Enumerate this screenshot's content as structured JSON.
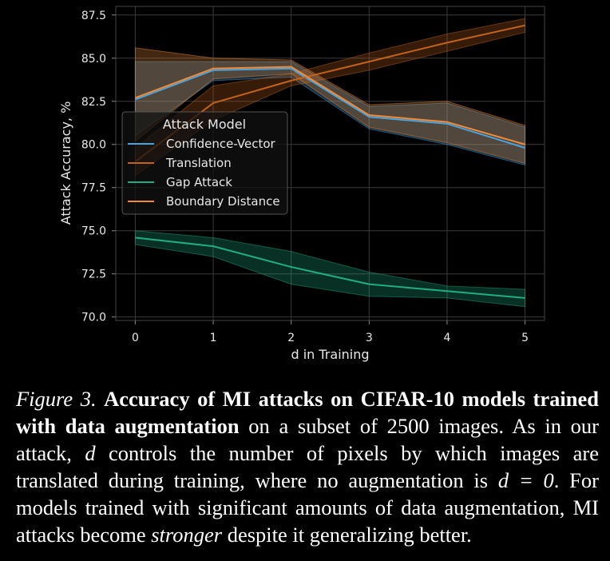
{
  "chart_data": {
    "type": "line",
    "xlabel": "d in Training",
    "ylabel": "Attack Accuracy, %",
    "xlim": [
      -0.25,
      5.25
    ],
    "ylim": [
      69.8,
      88.0
    ],
    "x_ticks": [
      0,
      1,
      2,
      3,
      4,
      5
    ],
    "y_ticks": [
      70.0,
      72.5,
      75.0,
      77.5,
      80.0,
      82.5,
      85.0,
      87.5
    ],
    "y_tick_labels": [
      "70.0",
      "72.5",
      "75.0",
      "77.5",
      "80.0",
      "82.5",
      "85.0",
      "87.5"
    ],
    "grid": true,
    "legend": {
      "title": "Attack Model",
      "placement": "center-left"
    },
    "x": [
      0,
      1,
      2,
      3,
      4,
      5
    ],
    "series": [
      {
        "name": "Confidence-Vector",
        "color": "#4aa3df",
        "values": [
          82.6,
          84.3,
          84.4,
          81.6,
          81.2,
          79.8
        ],
        "lower": [
          80.5,
          83.7,
          83.9,
          80.9,
          80.0,
          78.8
        ],
        "upper": [
          84.8,
          84.8,
          84.8,
          82.2,
          82.4,
          81.0
        ]
      },
      {
        "name": "Translation",
        "color": "#c2621f",
        "values": [
          79.0,
          82.4,
          83.7,
          84.8,
          85.9,
          86.9
        ],
        "lower": [
          78.2,
          81.4,
          83.4,
          84.3,
          85.4,
          86.5
        ],
        "upper": [
          79.8,
          83.4,
          84.1,
          85.3,
          86.4,
          87.3
        ]
      },
      {
        "name": "Gap Attack",
        "color": "#1fae82",
        "values": [
          74.6,
          74.1,
          72.9,
          71.9,
          71.5,
          71.1
        ],
        "lower": [
          74.2,
          73.5,
          71.9,
          71.2,
          71.1,
          70.6
        ],
        "upper": [
          75.0,
          74.6,
          73.8,
          72.6,
          71.8,
          71.6
        ]
      },
      {
        "name": "Boundary Distance",
        "color": "#ef8b3a",
        "values": [
          82.7,
          84.4,
          84.5,
          81.7,
          81.3,
          80.0
        ],
        "lower": [
          80.2,
          83.8,
          84.1,
          81.0,
          80.1,
          78.9
        ],
        "upper": [
          85.6,
          85.0,
          84.9,
          82.3,
          82.5,
          81.1
        ]
      }
    ]
  },
  "caption": {
    "label": "Figure 3.",
    "bold": "Accuracy of MI attacks on CIFAR-10 models trained with data augmentation",
    "text1": " on a subset of 2500 images. As in our attack, ",
    "var_d": "d",
    "text2": " controls the number of pixels by which images are translated during training, where no augmentation is ",
    "equation": "d = 0",
    "text3": ". For models trained with significant amounts of data augmentation, MI attacks become ",
    "emph": "stronger",
    "text4": " despite it generalizing better."
  }
}
